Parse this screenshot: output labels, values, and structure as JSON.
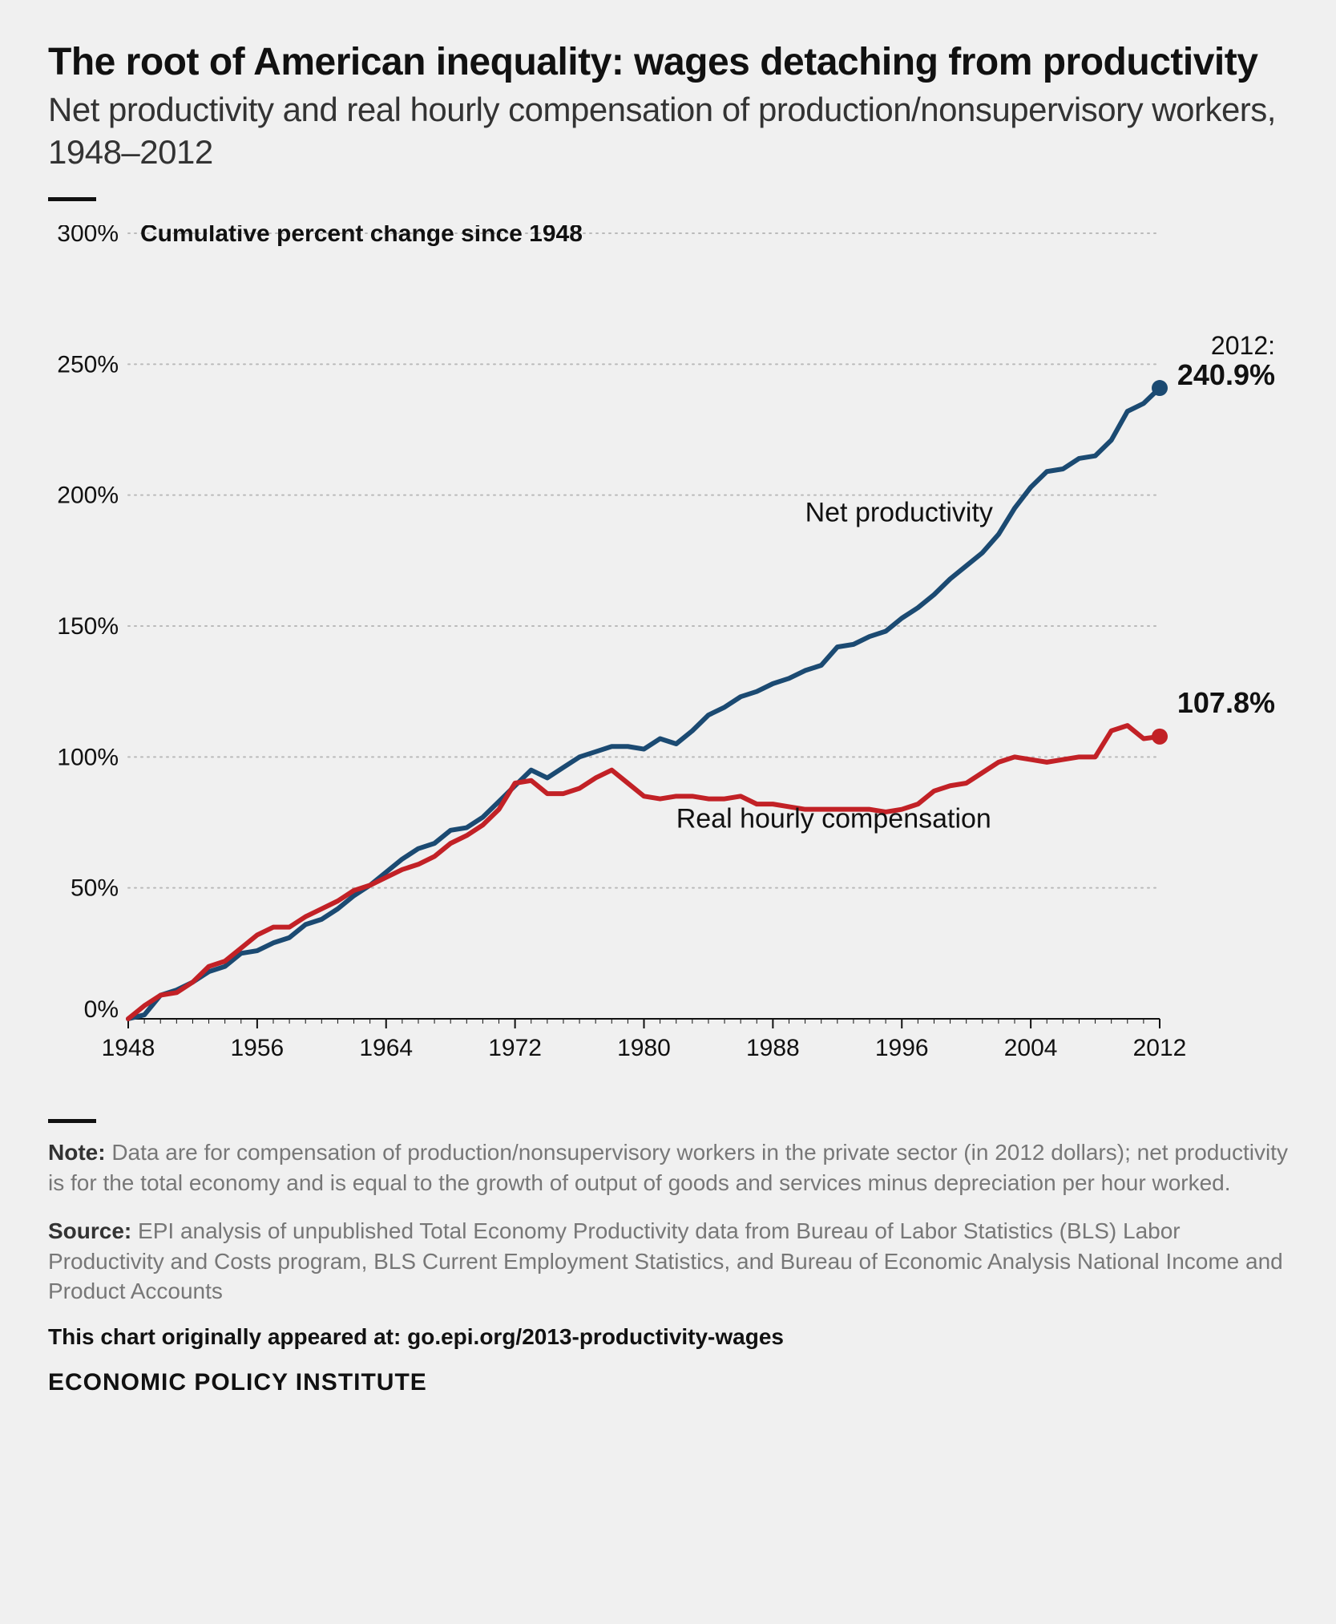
{
  "header": {
    "title": "The root of American inequality: wages detaching from productivity",
    "subtitle": "Net productivity and real hourly compensation of production/nonsupervisory workers, 1948–2012",
    "title_fontsize": 48,
    "subtitle_fontsize": 42
  },
  "chart": {
    "type": "line",
    "axis_label": "Cumulative percent change since 1948",
    "background": "#f0f0f0",
    "grid_color": "#bababa",
    "axis_color": "#111111",
    "tick_color": "#111111",
    "tick_fontsize": 30,
    "axis_label_fontsize": 30,
    "line_width": 6,
    "marker_radius": 10,
    "x": {
      "min": 1948,
      "max": 2012,
      "ticks": [
        1948,
        1956,
        1964,
        1972,
        1980,
        1988,
        1996,
        2004,
        2012
      ]
    },
    "y": {
      "min": 0,
      "max": 300,
      "ticks": [
        0,
        50,
        100,
        150,
        200,
        250,
        300
      ],
      "tick_format_suffix": "%"
    },
    "series": [
      {
        "name": "Net productivity",
        "color": "#1b4a72",
        "label_text": "Net productivity",
        "label_fontsize": 34,
        "label_xy": [
          1990,
          190
        ],
        "end_annotation_year": "2012:",
        "end_annotation_value": "240.9%",
        "end_annotation_fontsize": 36,
        "data": [
          [
            1948,
            0
          ],
          [
            1949,
            1.5
          ],
          [
            1950,
            9
          ],
          [
            1951,
            11
          ],
          [
            1952,
            14
          ],
          [
            1953,
            18
          ],
          [
            1954,
            20
          ],
          [
            1955,
            25
          ],
          [
            1956,
            26
          ],
          [
            1957,
            29
          ],
          [
            1958,
            31
          ],
          [
            1959,
            36
          ],
          [
            1960,
            38
          ],
          [
            1961,
            42
          ],
          [
            1962,
            47
          ],
          [
            1963,
            51
          ],
          [
            1964,
            56
          ],
          [
            1965,
            61
          ],
          [
            1966,
            65
          ],
          [
            1967,
            67
          ],
          [
            1968,
            72
          ],
          [
            1969,
            73
          ],
          [
            1970,
            77
          ],
          [
            1971,
            83
          ],
          [
            1972,
            89
          ],
          [
            1973,
            95
          ],
          [
            1974,
            92
          ],
          [
            1975,
            96
          ],
          [
            1976,
            100
          ],
          [
            1977,
            102
          ],
          [
            1978,
            104
          ],
          [
            1979,
            104
          ],
          [
            1980,
            103
          ],
          [
            1981,
            107
          ],
          [
            1982,
            105
          ],
          [
            1983,
            110
          ],
          [
            1984,
            116
          ],
          [
            1985,
            119
          ],
          [
            1986,
            123
          ],
          [
            1987,
            125
          ],
          [
            1988,
            128
          ],
          [
            1989,
            130
          ],
          [
            1990,
            133
          ],
          [
            1991,
            135
          ],
          [
            1992,
            142
          ],
          [
            1993,
            143
          ],
          [
            1994,
            146
          ],
          [
            1995,
            148
          ],
          [
            1996,
            153
          ],
          [
            1997,
            157
          ],
          [
            1998,
            162
          ],
          [
            1999,
            168
          ],
          [
            2000,
            173
          ],
          [
            2001,
            178
          ],
          [
            2002,
            185
          ],
          [
            2003,
            195
          ],
          [
            2004,
            203
          ],
          [
            2005,
            209
          ],
          [
            2006,
            210
          ],
          [
            2007,
            214
          ],
          [
            2008,
            215
          ],
          [
            2009,
            221
          ],
          [
            2010,
            232
          ],
          [
            2011,
            235
          ],
          [
            2012,
            240.9
          ]
        ]
      },
      {
        "name": "Real hourly compensation",
        "color": "#c22126",
        "label_text": "Real hourly compensation",
        "label_fontsize": 34,
        "label_xy": [
          1982,
          73
        ],
        "end_annotation_year": "",
        "end_annotation_value": "107.8%",
        "end_annotation_fontsize": 36,
        "data": [
          [
            1948,
            0
          ],
          [
            1949,
            5
          ],
          [
            1950,
            9
          ],
          [
            1951,
            10
          ],
          [
            1952,
            14
          ],
          [
            1953,
            20
          ],
          [
            1954,
            22
          ],
          [
            1955,
            27
          ],
          [
            1956,
            32
          ],
          [
            1957,
            35
          ],
          [
            1958,
            35
          ],
          [
            1959,
            39
          ],
          [
            1960,
            42
          ],
          [
            1961,
            45
          ],
          [
            1962,
            49
          ],
          [
            1963,
            51
          ],
          [
            1964,
            54
          ],
          [
            1965,
            57
          ],
          [
            1966,
            59
          ],
          [
            1967,
            62
          ],
          [
            1968,
            67
          ],
          [
            1969,
            70
          ],
          [
            1970,
            74
          ],
          [
            1971,
            80
          ],
          [
            1972,
            90
          ],
          [
            1973,
            91
          ],
          [
            1974,
            86
          ],
          [
            1975,
            86
          ],
          [
            1976,
            88
          ],
          [
            1977,
            92
          ],
          [
            1978,
            95
          ],
          [
            1979,
            90
          ],
          [
            1980,
            85
          ],
          [
            1981,
            84
          ],
          [
            1982,
            85
          ],
          [
            1983,
            85
          ],
          [
            1984,
            84
          ],
          [
            1985,
            84
          ],
          [
            1986,
            85
          ],
          [
            1987,
            82
          ],
          [
            1988,
            82
          ],
          [
            1989,
            81
          ],
          [
            1990,
            80
          ],
          [
            1991,
            80
          ],
          [
            1992,
            80
          ],
          [
            1993,
            80
          ],
          [
            1994,
            80
          ],
          [
            1995,
            79
          ],
          [
            1996,
            80
          ],
          [
            1997,
            82
          ],
          [
            1998,
            87
          ],
          [
            1999,
            89
          ],
          [
            2000,
            90
          ],
          [
            2001,
            94
          ],
          [
            2002,
            98
          ],
          [
            2003,
            100
          ],
          [
            2004,
            99
          ],
          [
            2005,
            98
          ],
          [
            2006,
            99
          ],
          [
            2007,
            100
          ],
          [
            2008,
            100
          ],
          [
            2009,
            110
          ],
          [
            2010,
            112
          ],
          [
            2011,
            107
          ],
          [
            2012,
            107.8
          ]
        ]
      }
    ]
  },
  "footer": {
    "note_label": "Note:",
    "note_text": " Data are for compensation of production/nonsupervisory workers in the private sector (in 2012 dollars); net productivity is for the total economy and is equal to the growth of output of goods and services minus depreciation per hour worked.",
    "source_label": "Source:",
    "source_text": " EPI analysis of unpublished Total Economy Productivity data from Bureau of Labor Statistics (BLS) Labor Productivity and Costs program, BLS Current Employment Statistics, and Bureau of Economic Analysis National Income and Product Accounts",
    "attribution": "This chart originally appeared at: go.epi.org/2013-productivity-wages",
    "org": "ECONOMIC POLICY INSTITUTE",
    "footnote_fontsize": 28,
    "attribution_fontsize": 28,
    "org_fontsize": 30
  }
}
